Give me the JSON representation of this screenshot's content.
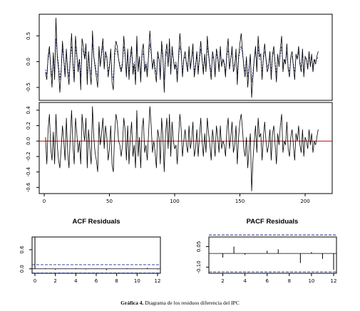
{
  "caption": {
    "label": "Gráfica 4.",
    "text": "Diagrama de los residuos diferencia del IPC"
  },
  "chart_data": [
    {
      "type": "line",
      "panel": "top",
      "x_range": [
        1,
        212
      ],
      "ylim": [
        -0.75,
        0.92
      ],
      "y_ticks": [
        "-0.5",
        "0.0",
        "0.5"
      ],
      "y_tick_values": [
        -0.5,
        0.0,
        0.5
      ],
      "colors": {
        "observed": "#000000",
        "fitted": "#1f2f8f"
      },
      "series": [
        {
          "style": "solid",
          "values": [
            -0.2,
            -0.35,
            0.1,
            0.3,
            -0.15,
            -0.5,
            0.18,
            -0.35,
            0.85,
            0.1,
            -0.15,
            -0.6,
            -0.2,
            0.4,
            0.05,
            -0.3,
            0.25,
            -0.2,
            -0.45,
            0.1,
            0.55,
            -0.05,
            -0.4,
            0.5,
            0.15,
            -0.2,
            0.05,
            -0.55,
            0.45,
            0.3,
            0.05,
            0.35,
            -0.45,
            0.2,
            -0.2,
            -0.45,
            0.6,
            0.1,
            -0.1,
            -0.3,
            -0.5,
            0.3,
            -0.1,
            0.2,
            0.45,
            -0.15,
            0.2,
            0.1,
            -0.3,
            -0.1,
            0.25,
            -0.4,
            -0.55,
            0.2,
            0.4,
            0.3,
            0.05,
            -0.1,
            -0.2,
            -0.05,
            0.5,
            0.15,
            -0.3,
            0.25,
            -0.35,
            0.1,
            0.3,
            -0.25,
            -0.05,
            -0.45,
            0.5,
            -0.2,
            0.1,
            -0.4,
            0.2,
            0.35,
            -0.2,
            -0.05,
            -0.3,
            0.15,
            0.6,
            0.2,
            -0.15,
            0.05,
            -0.2,
            -0.4,
            0.2,
            0.05,
            -0.35,
            0.4,
            0.1,
            -0.6,
            0.15,
            0.35,
            -0.1,
            0.45,
            -0.25,
            0.3,
            0.05,
            -0.15,
            -0.05,
            -0.4,
            0.1,
            0.55,
            0.2,
            -0.3,
            0.05,
            0.2,
            -0.05,
            -0.2,
            0.3,
            -0.15,
            0.05,
            0.35,
            -0.3,
            -0.1,
            0.2,
            -0.25,
            0.1,
            0.4,
            0.05,
            -0.25,
            0.15,
            -0.2,
            0.5,
            0.15,
            -0.1,
            -0.35,
            0.2,
            0.05,
            -0.3,
            0.25,
            0.1,
            -0.2,
            0.3,
            -0.1,
            0.05,
            -0.05,
            -0.3,
            0.2,
            0.45,
            -0.15,
            0.05,
            0.3,
            -0.2,
            -0.1,
            0.25,
            -0.45,
            0.1,
            0.35,
            0.55,
            0.2,
            -0.1,
            -0.3,
            0.1,
            -0.5,
            -0.15,
            0.15,
            -0.7,
            -0.3,
            0.05,
            0.3,
            -0.2,
            0.5,
            0.1,
            0.15,
            -0.35,
            0.1,
            0.35,
            0.05,
            -0.2,
            -0.1,
            0.2,
            -0.35,
            0.15,
            0.3,
            -0.05,
            -0.4,
            0.15,
            -0.1,
            0.25,
            0.5,
            -0.2,
            0.05,
            -0.05,
            0.35,
            -0.15,
            -0.3,
            0.1,
            0.2,
            -0.1,
            -0.35,
            0.15,
            0.05,
            0.3,
            -0.05,
            -0.2,
            0.25,
            -0.3,
            0.1,
            0.05,
            -0.15,
            0.2,
            -0.1,
            0.15,
            -0.2,
            0.05,
            -0.05,
            0.1,
            0.2
          ]
        },
        {
          "style": "dashed",
          "values": [
            -0.15,
            -0.25,
            0.05,
            0.2,
            -0.1,
            -0.3,
            0.1,
            -0.2,
            0.45,
            0.15,
            -0.05,
            -0.35,
            -0.15,
            0.25,
            0.05,
            -0.2,
            0.15,
            -0.1,
            -0.3,
            0.05,
            0.3,
            0.0,
            -0.25,
            0.3,
            0.1,
            -0.1,
            0.05,
            -0.3,
            0.25,
            0.2,
            0.05,
            0.2,
            -0.25,
            0.1,
            -0.1,
            -0.25,
            0.35,
            0.1,
            -0.05,
            -0.2,
            -0.3,
            0.2,
            -0.05,
            0.15,
            0.3,
            -0.1,
            0.15,
            0.05,
            -0.2,
            -0.05,
            0.15,
            -0.25,
            -0.35,
            0.1,
            0.25,
            0.2,
            0.05,
            -0.05,
            -0.15,
            0.0,
            0.3,
            0.1,
            -0.2,
            0.15,
            -0.2,
            0.05,
            0.2,
            -0.15,
            0.0,
            -0.25,
            0.3,
            -0.1,
            0.05,
            -0.25,
            0.1,
            0.2,
            -0.15,
            0.0,
            -0.2,
            0.1,
            0.35,
            0.15,
            -0.1,
            0.05,
            -0.1,
            -0.25,
            0.1,
            0.05,
            -0.2,
            0.25,
            0.05,
            -0.35,
            0.1,
            0.2,
            -0.05,
            0.25,
            -0.15,
            0.2,
            0.05,
            -0.1,
            0.0,
            -0.25,
            0.05,
            0.3,
            0.15,
            -0.2,
            0.05,
            0.1,
            0.0,
            -0.1,
            0.2,
            -0.1,
            0.05,
            0.2,
            -0.2,
            -0.05,
            0.1,
            -0.15,
            0.05,
            0.25,
            0.05,
            -0.15,
            0.1,
            -0.1,
            0.3,
            0.1,
            -0.05,
            -0.2,
            0.1,
            0.05,
            -0.2,
            0.15,
            0.05,
            -0.1,
            0.2,
            -0.05,
            0.05,
            0.0,
            -0.2,
            0.1,
            0.25,
            -0.1,
            0.05,
            0.2,
            -0.1,
            -0.05,
            0.15,
            -0.25,
            0.05,
            0.2,
            0.3,
            0.15,
            -0.05,
            -0.2,
            0.05,
            -0.3,
            -0.1,
            0.1,
            -0.4,
            -0.2,
            0.05,
            0.2,
            -0.1,
            0.3,
            0.05,
            0.1,
            -0.2,
            0.05,
            0.2,
            0.05,
            -0.1,
            -0.05,
            0.1,
            -0.2,
            0.1,
            0.2,
            0.0,
            -0.25,
            0.1,
            -0.05,
            0.15,
            0.3,
            -0.1,
            0.05,
            0.0,
            0.2,
            -0.1,
            -0.2,
            0.05,
            0.1,
            -0.05,
            -0.2,
            0.1,
            0.05,
            0.2,
            0.0,
            -0.1,
            0.15,
            -0.2,
            0.05,
            0.05,
            -0.1,
            0.1,
            -0.05,
            0.1,
            -0.1,
            0.05,
            0.0,
            0.05,
            0.1
          ]
        }
      ]
    },
    {
      "type": "line",
      "panel": "middle",
      "x_range": [
        1,
        212
      ],
      "ylim": [
        -0.68,
        0.5
      ],
      "y_ticks": [
        "-0.6",
        "-0.4",
        "-0.2",
        "0.0",
        "0.2",
        "0.4"
      ],
      "y_tick_values": [
        -0.6,
        -0.4,
        -0.2,
        0.0,
        0.2,
        0.4
      ],
      "x_ticks": [
        "0",
        "50",
        "100",
        "150",
        "200"
      ],
      "x_tick_values": [
        0,
        50,
        100,
        150,
        200
      ],
      "hline": 0,
      "colors": {
        "line": "#000000",
        "hline": "#cc0000"
      },
      "values": [
        0.05,
        -0.3,
        0.15,
        0.35,
        -0.1,
        -0.25,
        0.12,
        -0.3,
        0.35,
        -0.05,
        -0.25,
        -0.35,
        -0.1,
        0.2,
        0.0,
        -0.25,
        0.3,
        -0.15,
        -0.35,
        0.05,
        0.4,
        -0.05,
        -0.3,
        0.3,
        0.1,
        -0.15,
        0.0,
        -0.3,
        0.35,
        0.15,
        0.0,
        0.3,
        -0.35,
        0.15,
        -0.1,
        -0.3,
        0.45,
        0.05,
        -0.15,
        -0.25,
        -0.4,
        0.25,
        -0.05,
        0.1,
        0.3,
        -0.1,
        0.2,
        0.05,
        -0.25,
        -0.1,
        0.2,
        -0.3,
        -0.4,
        0.1,
        0.35,
        0.25,
        0.0,
        -0.05,
        -0.2,
        -0.05,
        0.3,
        0.15,
        -0.25,
        0.2,
        -0.3,
        0.05,
        0.25,
        -0.2,
        -0.05,
        -0.35,
        0.4,
        -0.2,
        0.05,
        -0.35,
        0.15,
        0.3,
        -0.15,
        -0.05,
        -0.25,
        0.1,
        0.45,
        0.2,
        -0.15,
        0.0,
        -0.15,
        -0.35,
        0.15,
        0.05,
        -0.3,
        0.3,
        0.05,
        -0.4,
        0.1,
        0.3,
        -0.1,
        0.35,
        -0.2,
        0.25,
        0.0,
        -0.1,
        -0.05,
        -0.3,
        0.05,
        0.35,
        0.15,
        -0.2,
        0.0,
        0.15,
        -0.05,
        -0.15,
        0.2,
        -0.1,
        0.0,
        0.25,
        -0.2,
        -0.1,
        0.15,
        -0.2,
        0.05,
        0.3,
        0.0,
        -0.2,
        0.1,
        -0.15,
        0.3,
        0.1,
        -0.05,
        -0.25,
        0.15,
        0.0,
        -0.2,
        0.2,
        0.05,
        -0.15,
        0.2,
        -0.1,
        0.0,
        -0.05,
        -0.2,
        0.15,
        0.3,
        -0.1,
        0.05,
        0.25,
        -0.15,
        -0.05,
        0.2,
        -0.3,
        0.05,
        0.25,
        0.35,
        0.15,
        -0.1,
        -0.2,
        0.05,
        -0.35,
        -0.1,
        0.1,
        -0.65,
        -0.25,
        0.0,
        0.2,
        -0.15,
        0.3,
        0.05,
        0.1,
        -0.25,
        0.05,
        0.25,
        0.0,
        -0.15,
        -0.05,
        0.15,
        -0.25,
        0.1,
        0.2,
        -0.05,
        -0.3,
        0.1,
        -0.05,
        0.2,
        0.35,
        -0.15,
        0.0,
        -0.05,
        0.25,
        -0.1,
        -0.2,
        0.05,
        0.15,
        -0.05,
        -0.25,
        0.1,
        0.0,
        0.2,
        -0.05,
        -0.15,
        0.15,
        -0.2,
        0.05,
        0.0,
        -0.1,
        0.15,
        -0.05,
        0.1,
        -0.15,
        0.0,
        -0.05,
        0.05,
        0.15
      ]
    },
    {
      "type": "bar",
      "title": "ACF Residuals",
      "lags": [
        0,
        1,
        2,
        3,
        4,
        5,
        6,
        7,
        8,
        9,
        10,
        11,
        12
      ],
      "values": [
        1.0,
        0.02,
        -0.03,
        0.01,
        0.02,
        -0.02,
        0.01,
        -0.04,
        0.0,
        0.02,
        -0.01,
        0.03,
        -0.02
      ],
      "ylim": [
        -0.14,
        1.0
      ],
      "y_ticks": [
        "0.0",
        "0.6"
      ],
      "y_tick_values": [
        0.0,
        0.6
      ],
      "x_ticks": [
        "0",
        "2",
        "4",
        "6",
        "8",
        "10",
        "12"
      ],
      "x_tick_values": [
        0,
        2,
        4,
        6,
        8,
        10,
        12
      ],
      "conf_band": 0.13,
      "colors": {
        "bars": "#000000",
        "band": "#1f2f8f"
      }
    },
    {
      "type": "bar",
      "title": "PACF Residuals",
      "lags": [
        1,
        2,
        3,
        4,
        5,
        6,
        7,
        8,
        9,
        10,
        11,
        12
      ],
      "values": [
        0.0,
        -0.03,
        0.05,
        -0.01,
        0.0,
        0.02,
        0.03,
        0.0,
        -0.07,
        0.01,
        -0.04,
        -0.12
      ],
      "ylim": [
        -0.145,
        0.12
      ],
      "y_ticks": [
        "-0.10",
        "0.05"
      ],
      "y_tick_values": [
        -0.1,
        0.05
      ],
      "x_ticks": [
        "2",
        "4",
        "6",
        "8",
        "10",
        "12"
      ],
      "x_tick_values": [
        2,
        4,
        6,
        8,
        10,
        12
      ],
      "conf_band": 0.135,
      "colors": {
        "bars": "#000000",
        "band": "#1f2f8f"
      }
    }
  ]
}
